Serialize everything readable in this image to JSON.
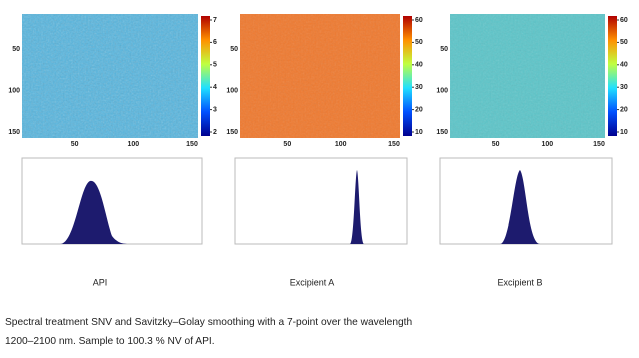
{
  "panels": [
    {
      "label": "API",
      "xticks": [
        50,
        100,
        150
      ],
      "yticks": [
        50,
        100,
        150
      ],
      "colorbar_ticks": [
        7,
        6,
        5,
        4,
        3,
        2
      ]
    },
    {
      "label": "Excipient A",
      "xticks": [
        50,
        100,
        150
      ],
      "yticks": [
        50,
        100,
        150
      ],
      "colorbar_ticks": [
        60,
        50,
        40,
        30,
        20,
        10
      ]
    },
    {
      "label": "Excipient B",
      "xticks": [
        50,
        100,
        150
      ],
      "yticks": [
        50,
        100,
        150
      ],
      "colorbar_ticks": [
        60,
        50,
        40,
        30,
        20,
        10
      ]
    }
  ],
  "caption": [
    "Spectral treatment SNV and Savitzky–Golay smoothing with a 7-point over the wavelength",
    "1200–2100 nm. Sample to 100.3 % NV of API."
  ]
}
